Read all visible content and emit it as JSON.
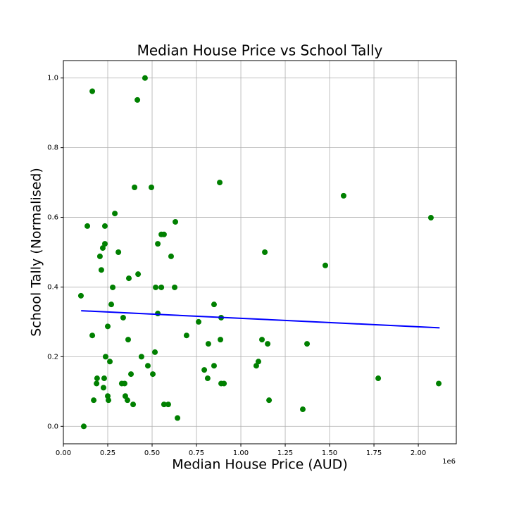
{
  "chart_data": {
    "type": "scatter",
    "title": "Median House Price vs School Tally",
    "x_label": "Median House Price (AUD)",
    "y_label": "School Tally (Normalised)",
    "x_offset_label": "1e6",
    "xlim": [
      0,
      2214000
    ],
    "ylim": [
      -0.05,
      1.05
    ],
    "xticks": [
      {
        "value": 0,
        "label": "0.00"
      },
      {
        "value": 250000,
        "label": "0.25"
      },
      {
        "value": 500000,
        "label": "0.50"
      },
      {
        "value": 750000,
        "label": "0.75"
      },
      {
        "value": 1000000,
        "label": "1.00"
      },
      {
        "value": 1250000,
        "label": "1.25"
      },
      {
        "value": 1500000,
        "label": "1.50"
      },
      {
        "value": 1750000,
        "label": "1.75"
      },
      {
        "value": 2000000,
        "label": "2.00"
      }
    ],
    "yticks": [
      {
        "value": 0,
        "label": "0.0"
      },
      0.2,
      0.4,
      0.6,
      0.8,
      {
        "value": 1,
        "label": "1.0"
      }
    ],
    "grid": true,
    "series": [
      {
        "mode": "markers",
        "color": "#008000",
        "x": [
          99000,
          115000,
          135000,
          163000,
          163000,
          171000,
          187000,
          190000,
          206000,
          214000,
          222000,
          226000,
          230000,
          234000,
          234000,
          238000,
          250000,
          250000,
          254000,
          262000,
          270000,
          278000,
          290000,
          310000,
          329000,
          337000,
          345000,
          349000,
          361000,
          365000,
          369000,
          381000,
          393000,
          401000,
          417000,
          421000,
          440000,
          460000,
          476000,
          496000,
          504000,
          516000,
          520000,
          532000,
          532000,
          552000,
          552000,
          567000,
          567000,
          591000,
          607000,
          627000,
          631000,
          643000,
          694000,
          762000,
          794000,
          813000,
          817000,
          849000,
          849000,
          881000,
          885000,
          889000,
          889000,
          905000,
          1087000,
          1099000,
          1119000,
          1135000,
          1151000,
          1159000,
          1349000,
          1373000,
          1476000,
          1579000,
          1774000,
          2071000,
          2115000
        ],
        "values": [
          0.375,
          0.0,
          0.575,
          0.962,
          0.261,
          0.075,
          0.123,
          0.138,
          0.488,
          0.449,
          0.512,
          0.111,
          0.138,
          0.524,
          0.575,
          0.2,
          0.287,
          0.087,
          0.075,
          0.186,
          0.35,
          0.399,
          0.611,
          0.5,
          0.123,
          0.312,
          0.123,
          0.087,
          0.075,
          0.249,
          0.425,
          0.15,
          0.063,
          0.686,
          0.937,
          0.437,
          0.2,
          1.0,
          0.174,
          0.686,
          0.15,
          0.213,
          0.399,
          0.524,
          0.324,
          0.399,
          0.551,
          0.551,
          0.063,
          0.063,
          0.488,
          0.399,
          0.587,
          0.024,
          0.261,
          0.3,
          0.162,
          0.138,
          0.237,
          0.174,
          0.35,
          0.7,
          0.249,
          0.312,
          0.123,
          0.123,
          0.174,
          0.186,
          0.249,
          0.5,
          0.237,
          0.075,
          0.049,
          0.237,
          0.462,
          0.662,
          0.138,
          0.599,
          0.123
        ]
      },
      {
        "mode": "line",
        "color": "#0000ff",
        "x": [
          100000,
          2120000
        ],
        "values": [
          0.332,
          0.283
        ]
      }
    ]
  }
}
